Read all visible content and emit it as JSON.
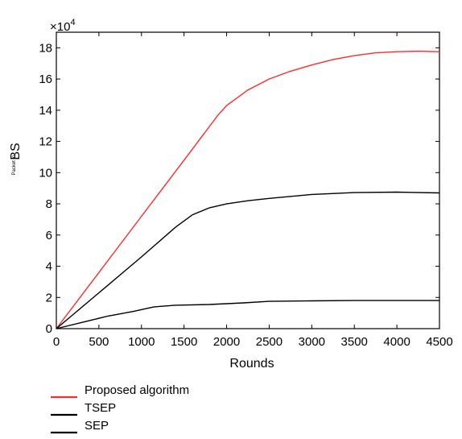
{
  "chart_data": {
    "type": "line",
    "title": "",
    "xlabel": "Rounds",
    "ylabel": "BS",
    "ylabel_prefix": "Packet to",
    "y_multiplier_label": "×10",
    "y_multiplier_exponent": "4",
    "xlim": [
      0,
      4500
    ],
    "ylim": [
      0,
      19
    ],
    "x_ticks": [
      0,
      500,
      1000,
      1500,
      2000,
      2500,
      3000,
      3500,
      4000,
      4500
    ],
    "y_ticks": [
      0,
      2,
      4,
      6,
      8,
      10,
      12,
      14,
      16,
      18
    ],
    "grid": false,
    "legend_position": "below",
    "series": [
      {
        "name": "Proposed algorithm",
        "color": "#ff2a2a",
        "x": [
          0,
          500,
          1000,
          1500,
          1900,
          2000,
          2250,
          2500,
          2750,
          3000,
          3250,
          3500,
          3750,
          4000,
          4250,
          4500
        ],
        "y": [
          0,
          3.6,
          7.2,
          10.8,
          13.7,
          14.3,
          15.3,
          16.0,
          16.5,
          16.9,
          17.25,
          17.5,
          17.68,
          17.75,
          17.78,
          17.75
        ]
      },
      {
        "name": "TSEP",
        "color": "#000000",
        "x": [
          0,
          500,
          1000,
          1400,
          1600,
          1800,
          2000,
          2250,
          2500,
          3000,
          3500,
          4000,
          4500
        ],
        "y": [
          0,
          2.3,
          4.6,
          6.5,
          7.3,
          7.75,
          8.0,
          8.2,
          8.35,
          8.6,
          8.72,
          8.75,
          8.7
        ]
      },
      {
        "name": "SEP",
        "color": "#000000",
        "x": [
          0,
          300,
          600,
          900,
          1150,
          1400,
          1800,
          2200,
          2500,
          3000,
          3500,
          4000,
          4500
        ],
        "y": [
          0,
          0.4,
          0.8,
          1.1,
          1.4,
          1.5,
          1.55,
          1.65,
          1.75,
          1.78,
          1.8,
          1.8,
          1.8
        ]
      }
    ]
  }
}
